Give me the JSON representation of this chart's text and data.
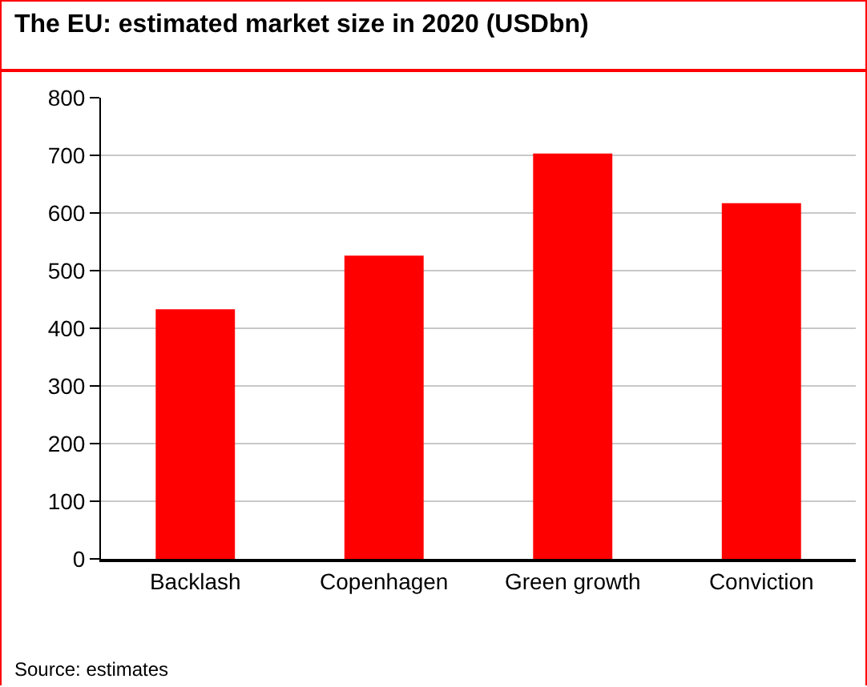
{
  "chart_data": {
    "type": "bar",
    "title": "The EU: estimated market size in 2020 (USDbn)",
    "categories": [
      "Backlash",
      "Copenhagen",
      "Green growth",
      "Conviction"
    ],
    "values": [
      433,
      526,
      703,
      617
    ],
    "color": "#ff0000",
    "ylim": [
      0,
      800
    ],
    "yticks": [
      0,
      100,
      200,
      300,
      400,
      500,
      600,
      700,
      800
    ],
    "grid": "y",
    "annotations": [
      "Source: estimates"
    ]
  }
}
